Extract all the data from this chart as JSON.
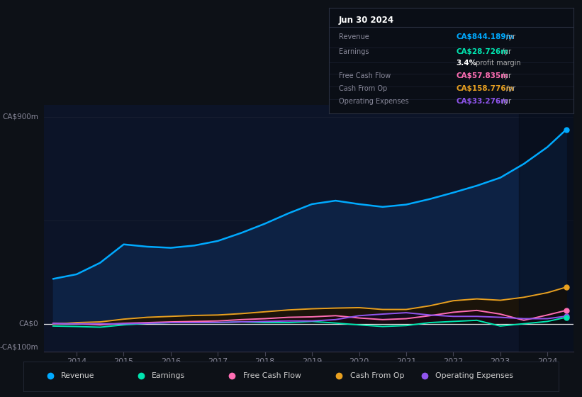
{
  "background_color": "#0d1117",
  "plot_bg_color": "#0c1428",
  "grid_color": "#2a3040",
  "title_date": "Jun 30 2024",
  "ylabel_top": "CA$900m",
  "ylabel_zero": "CA$0",
  "ylabel_bottom": "-CA$100m",
  "x_years": [
    2013.5,
    2014.0,
    2014.5,
    2015.0,
    2015.5,
    2016.0,
    2016.5,
    2017.0,
    2017.5,
    2018.0,
    2018.5,
    2019.0,
    2019.5,
    2020.0,
    2020.5,
    2021.0,
    2021.5,
    2022.0,
    2022.5,
    2023.0,
    2023.5,
    2024.0,
    2024.4
  ],
  "revenue": [
    195,
    215,
    265,
    345,
    335,
    330,
    340,
    360,
    395,
    435,
    480,
    520,
    535,
    520,
    508,
    518,
    542,
    570,
    600,
    635,
    695,
    768,
    844
  ],
  "earnings": [
    -10,
    -12,
    -15,
    -5,
    2,
    5,
    5,
    5,
    8,
    5,
    5,
    10,
    3,
    -5,
    -12,
    -8,
    5,
    10,
    15,
    -10,
    0,
    10,
    28
  ],
  "free_cash_flow": [
    2,
    0,
    -5,
    2,
    5,
    8,
    10,
    12,
    18,
    22,
    28,
    30,
    35,
    25,
    18,
    22,
    35,
    50,
    58,
    42,
    15,
    38,
    58
  ],
  "cash_from_op": [
    -2,
    5,
    8,
    20,
    28,
    32,
    36,
    38,
    44,
    52,
    60,
    65,
    68,
    70,
    62,
    62,
    78,
    100,
    108,
    102,
    115,
    135,
    159
  ],
  "operating_expenses": [
    0,
    0,
    0,
    0,
    2,
    5,
    5,
    6,
    8,
    10,
    12,
    12,
    18,
    35,
    42,
    48,
    38,
    32,
    32,
    28,
    22,
    22,
    33
  ],
  "revenue_color": "#00aaff",
  "revenue_fill": "#0d2040",
  "earnings_color": "#00e5b0",
  "fcf_color": "#ff6eb4",
  "cfop_color": "#e8a020",
  "opex_color": "#9055ee",
  "legend_items": [
    {
      "label": "Revenue",
      "color": "#00aaff"
    },
    {
      "label": "Earnings",
      "color": "#00e5b0"
    },
    {
      "label": "Free Cash Flow",
      "color": "#ff6eb4"
    },
    {
      "label": "Cash From Op",
      "color": "#e8a020"
    },
    {
      "label": "Operating Expenses",
      "color": "#9055ee"
    }
  ]
}
